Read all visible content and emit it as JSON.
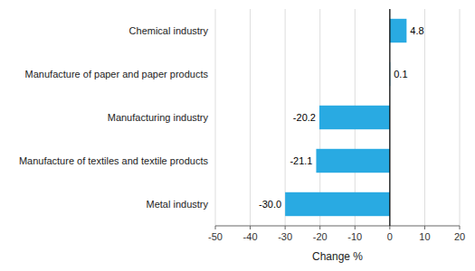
{
  "chart_data": {
    "type": "bar",
    "orientation": "horizontal",
    "categories": [
      "Metal industry",
      "Manufacture of textiles and textile products",
      "Manufacturing industry",
      "Manufacture of paper and paper products",
      "Chemical industry"
    ],
    "values": [
      -30.0,
      -21.1,
      -20.2,
      0.1,
      4.8
    ],
    "value_labels": [
      "-30.0",
      "-21.1",
      "-20.2",
      "0.1",
      "4.8"
    ],
    "color": "#29aae2",
    "xlim": [
      -50,
      20
    ],
    "xticks": [
      -50,
      -40,
      -30,
      -20,
      -10,
      0,
      10,
      20
    ],
    "xlabel": "Change %",
    "grid": true,
    "data_labels": true
  }
}
